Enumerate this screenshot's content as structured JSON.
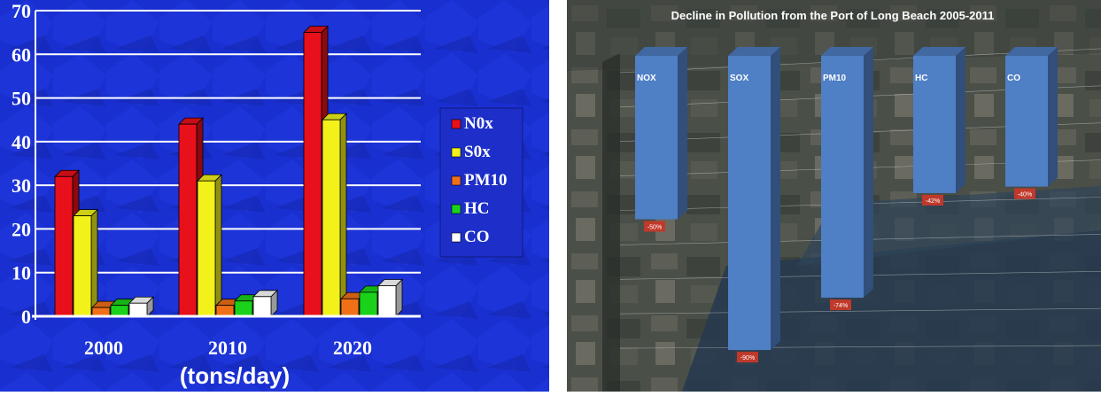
{
  "chart_data": [
    {
      "type": "bar",
      "categories": [
        "2000",
        "2010",
        "2020"
      ],
      "series": [
        {
          "name": "N0x",
          "color": "#e8101a",
          "values": [
            32,
            44,
            65
          ]
        },
        {
          "name": "S0x",
          "color": "#f2f21a",
          "values": [
            23,
            31,
            45
          ]
        },
        {
          "name": "PM10",
          "color": "#f07018",
          "values": [
            2,
            2.5,
            4
          ]
        },
        {
          "name": "HC",
          "color": "#1ad21a",
          "values": [
            2.5,
            3.5,
            5.5
          ]
        },
        {
          "name": "CO",
          "color": "#ffffff",
          "values": [
            3,
            4.5,
            7
          ]
        }
      ],
      "xlabel": "(tons/day)",
      "ylim": [
        0,
        70
      ],
      "yticks": [
        0,
        10,
        20,
        30,
        40,
        50,
        60,
        70
      ],
      "grid": true,
      "legend": "right",
      "background": "#1a2fd0"
    },
    {
      "type": "bar",
      "title": "Decline in Pollution from the Port of Long Beach 2005-2011",
      "categories": [
        "NOX",
        "SOX",
        "PM10",
        "HC",
        "CO"
      ],
      "values": [
        -50,
        -90,
        -74,
        -42,
        -40
      ],
      "value_labels": [
        "-50%",
        "-90%",
        "-74%",
        "-42%",
        "-40%"
      ],
      "ylim": [
        -100,
        0
      ],
      "bar_color": "#4f7fc4",
      "label_color": "#c0392b"
    }
  ]
}
